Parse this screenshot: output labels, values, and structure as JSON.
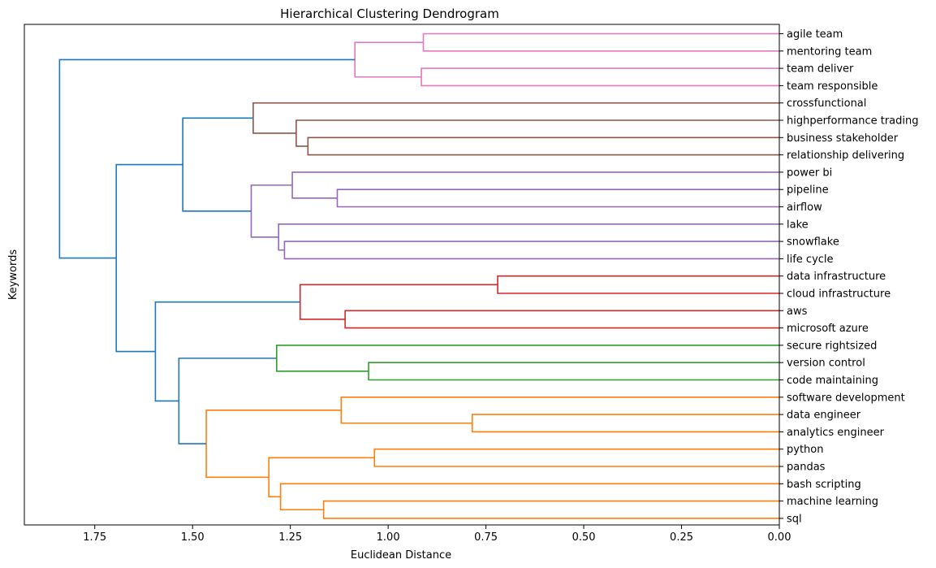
{
  "chart_data": {
    "type": "dendrogram",
    "orientation": "left",
    "title": "Hierarchical Clustering Dendrogram",
    "xlabel": "Euclidean Distance",
    "ylabel": "Keywords",
    "xlim": [
      1.93,
      0.0
    ],
    "xticks": [
      "1.75",
      "1.50",
      "1.25",
      "1.00",
      "0.75",
      "0.50",
      "0.25",
      "0.00"
    ],
    "xtick_values": [
      1.75,
      1.5,
      1.25,
      1.0,
      0.75,
      0.5,
      0.25,
      0.0
    ],
    "grid": false,
    "colors": {
      "pink": "#e377c2",
      "brown": "#8c564b",
      "purple": "#9467bd",
      "red": "#d62728",
      "green": "#2ca02c",
      "orange": "#ff7f0e",
      "blue": "#1f77b4"
    },
    "leaves": [
      "agile team",
      "mentoring team",
      "team deliver",
      "team responsible",
      "crossfunctional",
      "highperformance trading",
      "business stakeholder",
      "relationship delivering",
      "power bi",
      "pipeline",
      "airflow",
      "lake",
      "snowflake",
      "life cycle",
      "data infrastructure",
      "cloud infrastructure",
      "aws",
      "microsoft azure",
      "secure rightsized",
      "version control",
      "code maintaining",
      "software development",
      "data engineer",
      "analytics engineer",
      "python",
      "pandas",
      "bash scripting",
      "machine learning",
      "sql"
    ],
    "merges": [
      {
        "id": "n1",
        "a": 0,
        "b": 1,
        "height": 0.91,
        "color": "pink"
      },
      {
        "id": "n2",
        "a": 2,
        "b": 3,
        "height": 0.915,
        "color": "pink"
      },
      {
        "id": "n3",
        "a": "n1",
        "b": "n2",
        "height": 1.085,
        "color": "pink"
      },
      {
        "id": "n4",
        "a": 6,
        "b": 7,
        "height": 1.205,
        "color": "brown"
      },
      {
        "id": "n5",
        "a": 5,
        "b": "n4",
        "height": 1.235,
        "color": "brown"
      },
      {
        "id": "n6",
        "a": 4,
        "b": "n5",
        "height": 1.345,
        "color": "brown"
      },
      {
        "id": "n7",
        "a": 9,
        "b": 10,
        "height": 1.13,
        "color": "purple"
      },
      {
        "id": "n8",
        "a": 8,
        "b": "n7",
        "height": 1.245,
        "color": "purple"
      },
      {
        "id": "n9",
        "a": 12,
        "b": 13,
        "height": 1.265,
        "color": "purple"
      },
      {
        "id": "n10",
        "a": 11,
        "b": "n9",
        "height": 1.28,
        "color": "purple"
      },
      {
        "id": "n11",
        "a": "n8",
        "b": "n10",
        "height": 1.35,
        "color": "purple"
      },
      {
        "id": "n12",
        "a": "n6",
        "b": "n11",
        "height": 1.525,
        "color": "blue"
      },
      {
        "id": "n13",
        "a": 14,
        "b": 15,
        "height": 0.72,
        "color": "red"
      },
      {
        "id": "n14",
        "a": 16,
        "b": 17,
        "height": 1.11,
        "color": "red"
      },
      {
        "id": "n15",
        "a": "n13",
        "b": "n14",
        "height": 1.225,
        "color": "red"
      },
      {
        "id": "n16",
        "a": 19,
        "b": 20,
        "height": 1.05,
        "color": "green"
      },
      {
        "id": "n17",
        "a": 18,
        "b": "n16",
        "height": 1.285,
        "color": "green"
      },
      {
        "id": "n18",
        "a": 22,
        "b": 23,
        "height": 0.785,
        "color": "orange"
      },
      {
        "id": "n19",
        "a": 21,
        "b": "n18",
        "height": 1.12,
        "color": "orange"
      },
      {
        "id": "n20",
        "a": 24,
        "b": 25,
        "height": 1.035,
        "color": "orange"
      },
      {
        "id": "n21",
        "a": 27,
        "b": 28,
        "height": 1.165,
        "color": "orange"
      },
      {
        "id": "n22",
        "a": 26,
        "b": "n21",
        "height": 1.275,
        "color": "orange"
      },
      {
        "id": "n23",
        "a": "n20",
        "b": "n22",
        "height": 1.305,
        "color": "orange"
      },
      {
        "id": "n24",
        "a": "n19",
        "b": "n23",
        "height": 1.465,
        "color": "orange"
      },
      {
        "id": "n25",
        "a": "n17",
        "b": "n24",
        "height": 1.535,
        "color": "blue"
      },
      {
        "id": "n26",
        "a": "n15",
        "b": "n25",
        "height": 1.595,
        "color": "blue"
      },
      {
        "id": "n27",
        "a": "n12",
        "b": "n26",
        "height": 1.695,
        "color": "blue"
      },
      {
        "id": "n28",
        "a": "n3",
        "b": "n27",
        "height": 1.84,
        "color": "blue"
      }
    ]
  }
}
